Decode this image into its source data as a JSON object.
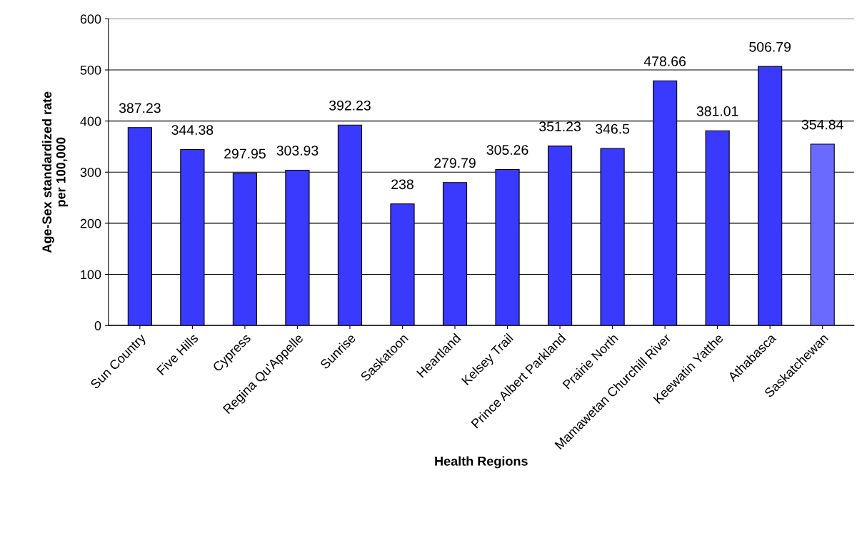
{
  "chart_data": {
    "type": "bar",
    "xlabel": "Health Regions",
    "ylabel": "Age-Sex standardized rate\nper 100,000",
    "categories": [
      "Sun Country",
      "Five Hills",
      "Cypress",
      "Regina Qu'Appelle",
      "Sunrise",
      "Saskatoon",
      "Heartland",
      "Kelsey Trail",
      "Prince Albert Parkland",
      "Prairie North",
      "Mamawetan Churchill River",
      "Keewatin Yatthe",
      "Athabasca",
      "Saskatchewan"
    ],
    "values": [
      387.23,
      344.38,
      297.95,
      303.93,
      392.23,
      238,
      279.79,
      305.26,
      351.23,
      346.5,
      478.66,
      381.01,
      506.79,
      354.84
    ],
    "colors": [
      "#3a3aff",
      "#3a3aff",
      "#3a3aff",
      "#3a3aff",
      "#3a3aff",
      "#3a3aff",
      "#3a3aff",
      "#3a3aff",
      "#3a3aff",
      "#3a3aff",
      "#3a3aff",
      "#3a3aff",
      "#3a3aff",
      "#6a6aff"
    ],
    "ylim": [
      0,
      600
    ],
    "yticks": [
      0,
      100,
      200,
      300,
      400,
      500,
      600
    ],
    "grid": "y",
    "data_labels": true
  }
}
